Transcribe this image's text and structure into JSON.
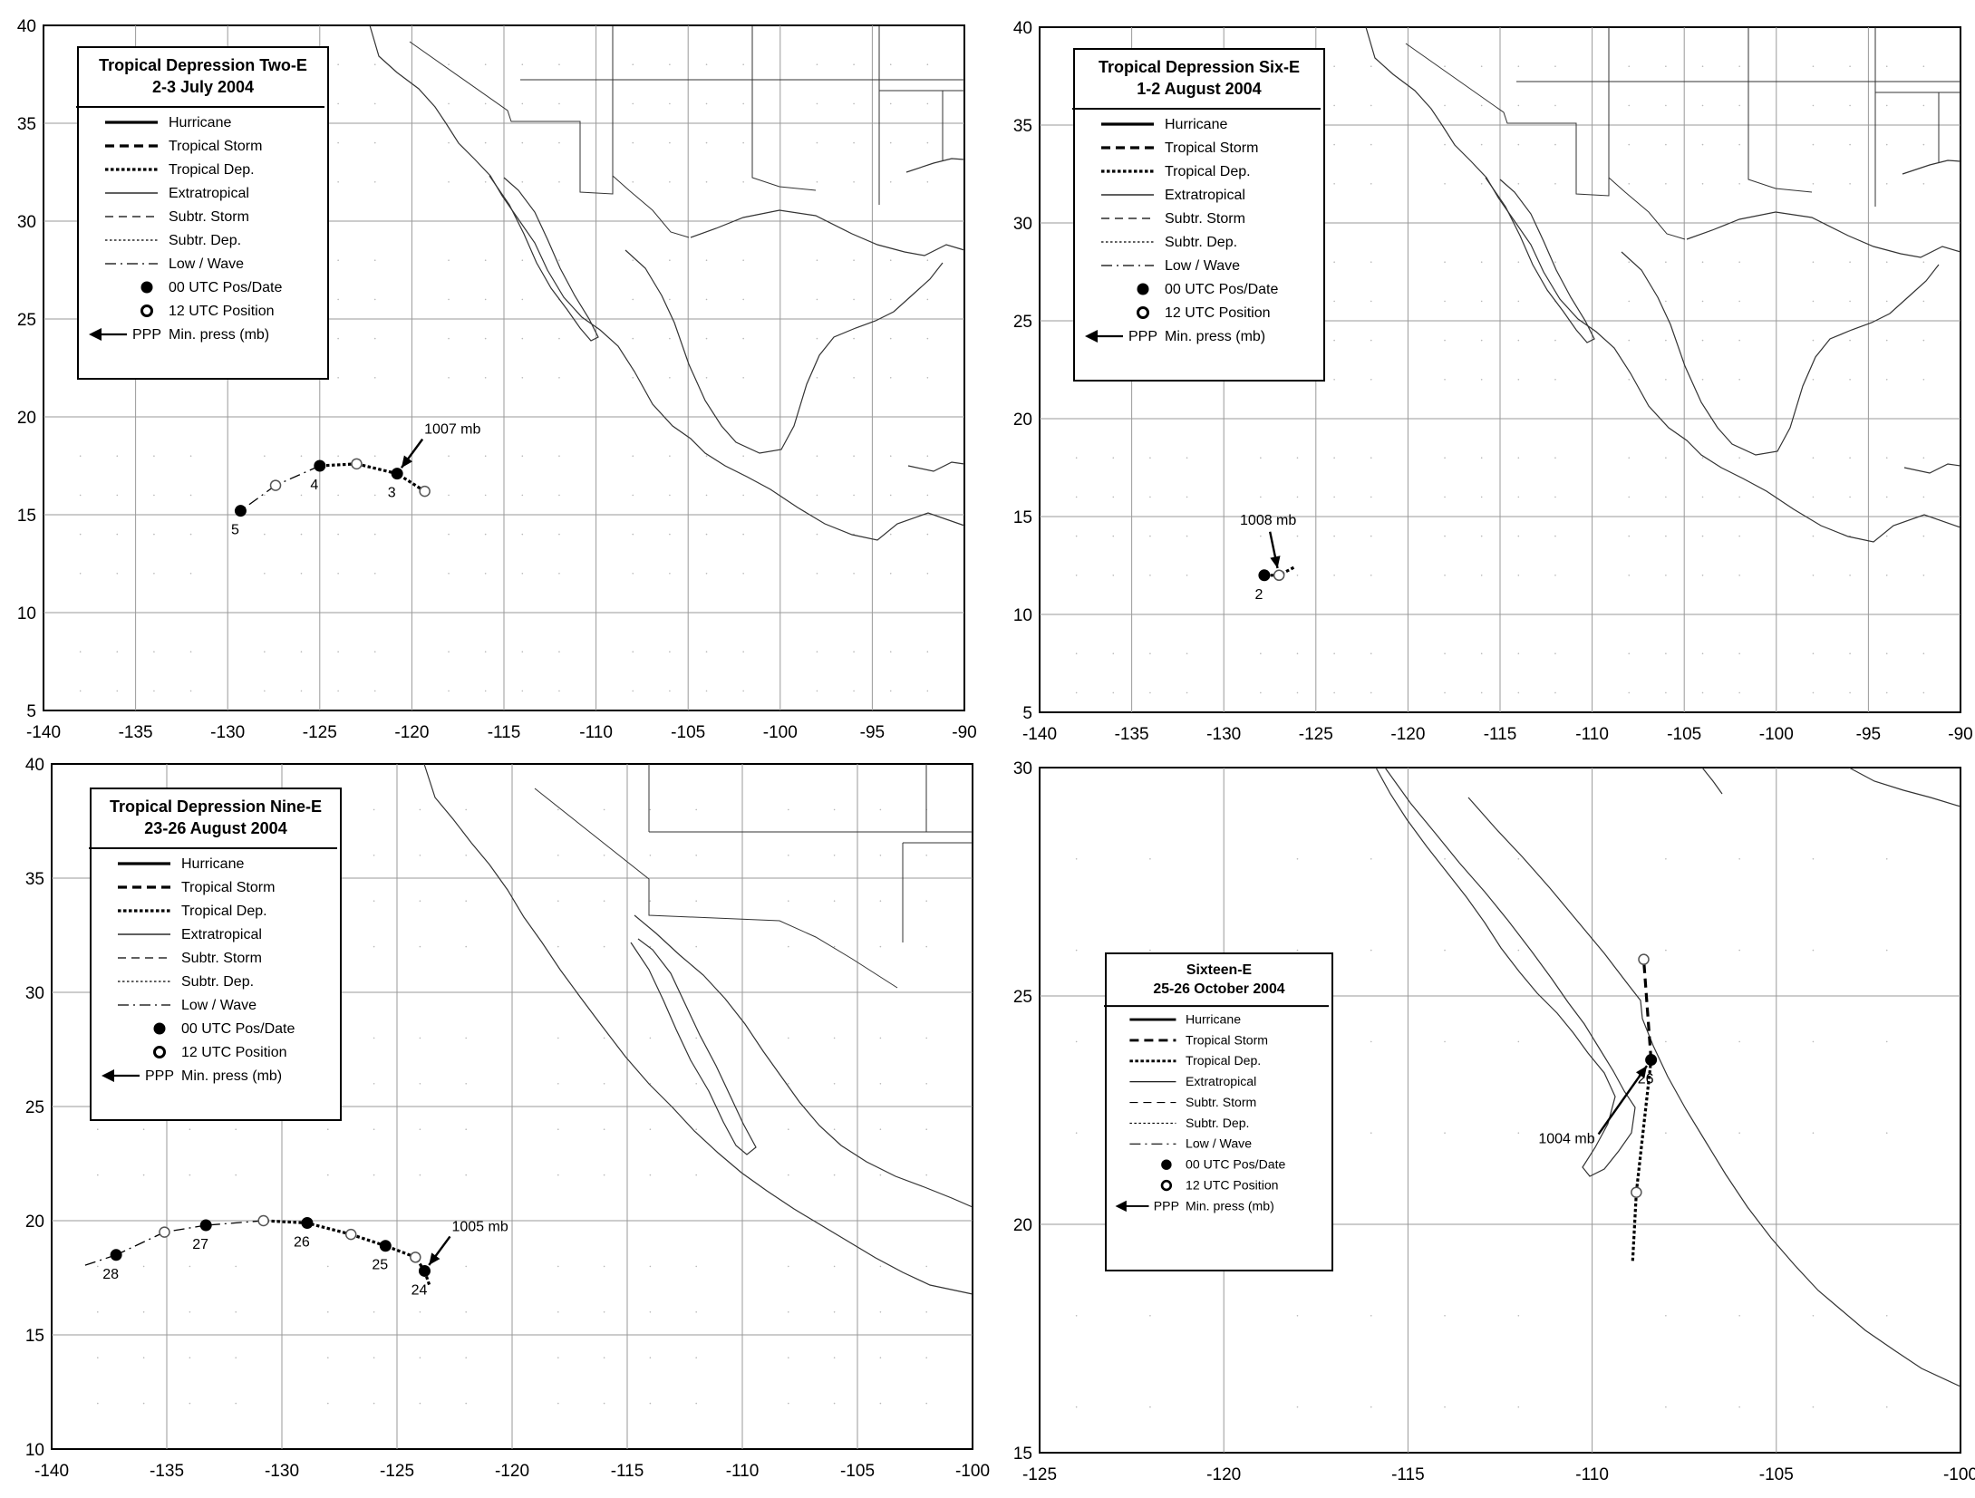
{
  "legend_items": [
    {
      "label": "Hurricane",
      "style": "hurricane"
    },
    {
      "label": "Tropical Storm",
      "style": "tropical-storm"
    },
    {
      "label": "Tropical Dep.",
      "style": "tropical-dep"
    },
    {
      "label": "Extratropical",
      "style": "extratropical"
    },
    {
      "label": "Subtr. Storm",
      "style": "subtr-storm"
    },
    {
      "label": "Subtr. Dep.",
      "style": "subtr-dep"
    },
    {
      "label": "Low / Wave",
      "style": "low-wave"
    },
    {
      "label": "00 UTC Pos/Date",
      "style": "filled-dot"
    },
    {
      "label": "12 UTC Position",
      "style": "open-dot"
    }
  ],
  "pressure_legend": {
    "prefix": "PPP",
    "label": "Min. press (mb)"
  },
  "panels": [
    {
      "id": "two-e",
      "title": "Tropical Depression Two-E",
      "subtitle": "2-3 July 2004",
      "lon_range": [
        -140,
        -90
      ],
      "lat_range": [
        5,
        40
      ],
      "x_ticks": [
        "-140",
        "-135",
        "-130",
        "-125",
        "-120",
        "-115",
        "-110",
        "-105",
        "-100",
        "-95",
        "-90"
      ],
      "y_ticks": [
        "5",
        "10",
        "15",
        "20",
        "25",
        "30",
        "35",
        "40"
      ],
      "track": [
        {
          "lon": -119.3,
          "lat": 16.2,
          "type": "open",
          "seg": "tropical-dep"
        },
        {
          "lon": -120.8,
          "lat": 17.1,
          "type": "filled",
          "label": "3",
          "seg": "tropical-dep"
        },
        {
          "lon": -123.0,
          "lat": 17.6,
          "type": "open",
          "seg": "tropical-dep"
        },
        {
          "lon": -125.0,
          "lat": 17.5,
          "type": "filled",
          "label": "4",
          "seg": "low-wave"
        },
        {
          "lon": -127.4,
          "lat": 16.5,
          "type": "open",
          "seg": "low-wave"
        },
        {
          "lon": -129.3,
          "lat": 15.2,
          "type": "filled",
          "label": "5"
        }
      ],
      "pressure": {
        "text": "1007 mb",
        "lon": -120.8,
        "lat": 17.1
      }
    },
    {
      "id": "six-e",
      "title": "Tropical Depression Six-E",
      "subtitle": "1-2 August 2004",
      "lon_range": [
        -140,
        -90
      ],
      "lat_range": [
        5,
        40
      ],
      "x_ticks": [
        "-140",
        "-135",
        "-130",
        "-125",
        "-120",
        "-115",
        "-110",
        "-105",
        "-100",
        "-95",
        "-90"
      ],
      "y_ticks": [
        "5",
        "10",
        "15",
        "20",
        "25",
        "30",
        "35",
        "40"
      ],
      "track": [
        {
          "lon": -126.2,
          "lat": 12.4,
          "type": "none",
          "seg": "tropical-dep"
        },
        {
          "lon": -127.0,
          "lat": 12.0,
          "type": "open",
          "seg": "tropical-dep"
        },
        {
          "lon": -127.8,
          "lat": 12.0,
          "type": "filled",
          "label": "2"
        }
      ],
      "pressure": {
        "text": "1008 mb",
        "lon": -127.0,
        "lat": 12.0
      }
    },
    {
      "id": "nine-e",
      "title": "Tropical Depression Nine-E",
      "subtitle": "23-26 August 2004",
      "lon_range": [
        -140,
        -100
      ],
      "lat_range": [
        10,
        40
      ],
      "x_ticks": [
        "-140",
        "-135",
        "-130",
        "-125",
        "-120",
        "-115",
        "-110",
        "-105",
        "-100"
      ],
      "y_ticks": [
        "10",
        "15",
        "20",
        "25",
        "30",
        "35",
        "40"
      ],
      "track": [
        {
          "lon": -123.6,
          "lat": 17.2,
          "type": "none",
          "seg": "tropical-dep"
        },
        {
          "lon": -123.8,
          "lat": 17.8,
          "type": "filled",
          "label": "24",
          "seg": "tropical-dep"
        },
        {
          "lon": -124.2,
          "lat": 18.4,
          "type": "open",
          "seg": "tropical-dep"
        },
        {
          "lon": -125.5,
          "lat": 18.9,
          "type": "filled",
          "label": "25",
          "seg": "tropical-dep"
        },
        {
          "lon": -127.0,
          "lat": 19.4,
          "type": "open",
          "seg": "tropical-dep"
        },
        {
          "lon": -128.9,
          "lat": 19.9,
          "type": "filled",
          "label": "26",
          "seg": "tropical-dep"
        },
        {
          "lon": -130.8,
          "lat": 20.0,
          "type": "open",
          "seg": "low-wave"
        },
        {
          "lon": -133.3,
          "lat": 19.8,
          "type": "filled",
          "label": "27",
          "seg": "low-wave"
        },
        {
          "lon": -135.1,
          "lat": 19.5,
          "type": "open",
          "seg": "low-wave"
        },
        {
          "lon": -137.2,
          "lat": 18.5,
          "type": "filled",
          "label": "28",
          "seg": "low-wave"
        },
        {
          "lon": -138.7,
          "lat": 18.0,
          "type": "none"
        }
      ],
      "pressure": {
        "text": "1005 mb",
        "lon": -123.8,
        "lat": 17.8
      }
    },
    {
      "id": "sixteen-e",
      "title": "Sixteen-E",
      "subtitle": "25-26 October 2004",
      "lon_range": [
        -125,
        -100
      ],
      "lat_range": [
        15,
        30
      ],
      "x_ticks": [
        "-125",
        "-120",
        "-115",
        "-110",
        "-105",
        "-100"
      ],
      "y_ticks": [
        "15",
        "20",
        "25",
        "30"
      ],
      "track": [
        {
          "lon": -108.9,
          "lat": 19.2,
          "type": "none",
          "seg": "tropical-dep"
        },
        {
          "lon": -108.8,
          "lat": 20.7,
          "type": "open",
          "seg": "tropical-dep"
        },
        {
          "lon": -108.4,
          "lat": 23.6,
          "type": "filled",
          "label": "26",
          "seg": "tropical-storm"
        },
        {
          "lon": -108.6,
          "lat": 25.8,
          "type": "open"
        }
      ],
      "pressure": {
        "text": "1004 mb",
        "lon": -108.4,
        "lat": 23.6
      }
    }
  ]
}
